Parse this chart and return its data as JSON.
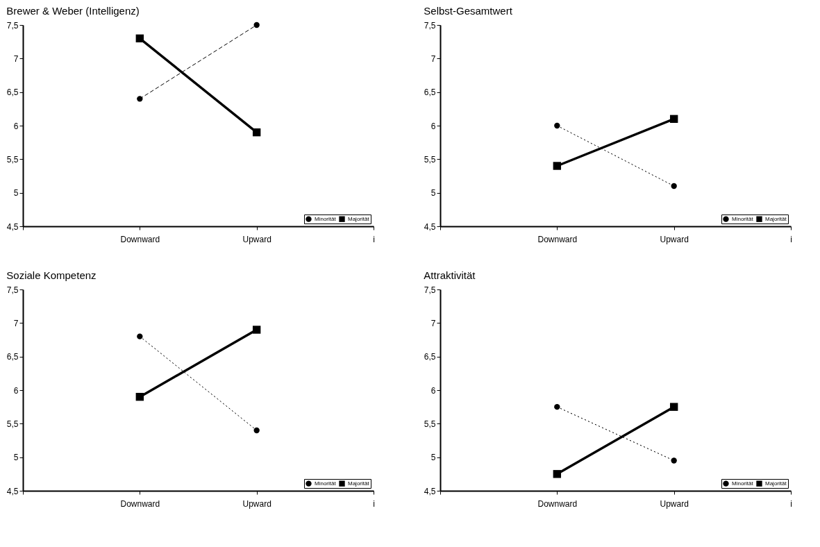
{
  "chart_data": [
    {
      "type": "line",
      "title": "Brewer & Weber (Intelligenz)",
      "categories": [
        null,
        "Downward",
        "Upward",
        "i"
      ],
      "ylim": [
        4.5,
        7.5
      ],
      "yticks": [
        {
          "value": 4.5,
          "label": "4,5"
        },
        5,
        {
          "value": 5.5,
          "label": "5,5"
        },
        6,
        {
          "value": 6.5,
          "label": "6,5"
        },
        7,
        {
          "value": 7.5,
          "label": "7,5"
        }
      ],
      "grid": false,
      "legend": "bottom right",
      "series": [
        {
          "name": "Minorität",
          "color": "#000000",
          "marker": "circle",
          "line_style": "dashed",
          "values": [
            null,
            6.4,
            7.5,
            null
          ]
        },
        {
          "name": "Majorität",
          "color": "#000000",
          "marker": "square",
          "line_style": "solid",
          "values": [
            null,
            7.3,
            5.9,
            null
          ]
        }
      ]
    },
    {
      "type": "line",
      "title": "Selbst-Gesamtwert",
      "categories": [
        null,
        "Downward",
        "Upward",
        "i"
      ],
      "ylim": [
        4.5,
        7.5
      ],
      "yticks": [
        {
          "value": 4.5,
          "label": "4,5"
        },
        5,
        {
          "value": 5.5,
          "label": "5,5"
        },
        6,
        {
          "value": 6.5,
          "label": "6,5"
        },
        7,
        {
          "value": 7.5,
          "label": "7,5"
        }
      ],
      "grid": false,
      "legend": "bottom right",
      "series": [
        {
          "name": "Minorität",
          "color": "#000000",
          "marker": "circle",
          "line_style": "dotted",
          "values": [
            null,
            6.0,
            5.1,
            null
          ]
        },
        {
          "name": "Majorität",
          "color": "#000000",
          "marker": "square",
          "line_style": "solid",
          "values": [
            null,
            5.4,
            6.1,
            null
          ]
        }
      ]
    },
    {
      "type": "line",
      "title": "Soziale Kompetenz",
      "categories": [
        null,
        "Downward",
        "Upward",
        "i"
      ],
      "ylim": [
        4.5,
        7.5
      ],
      "yticks": [
        {
          "value": 4.5,
          "label": "4,5"
        },
        5,
        {
          "value": 5.5,
          "label": "5,5"
        },
        6,
        {
          "value": 6.5,
          "label": "6,5"
        },
        7,
        {
          "value": 7.5,
          "label": "7,5"
        }
      ],
      "grid": false,
      "legend": "bottom right",
      "series": [
        {
          "name": "Minorität",
          "color": "#000000",
          "marker": "circle",
          "line_style": "dotted",
          "values": [
            null,
            6.8,
            5.4,
            null
          ]
        },
        {
          "name": "Majorität",
          "color": "#000000",
          "marker": "square",
          "line_style": "solid",
          "values": [
            null,
            5.9,
            6.9,
            null
          ]
        }
      ]
    },
    {
      "type": "line",
      "title": "Attraktivität",
      "categories": [
        null,
        "Downward",
        "Upward",
        "i"
      ],
      "ylim": [
        4.5,
        7.5
      ],
      "yticks": [
        {
          "value": 4.5,
          "label": "4,5"
        },
        5,
        {
          "value": 5.5,
          "label": "5,5"
        },
        6,
        {
          "value": 6.5,
          "label": "6,5"
        },
        7,
        {
          "value": 7.5,
          "label": "7,5"
        }
      ],
      "grid": false,
      "legend": "bottom right",
      "series": [
        {
          "name": "Minorität",
          "color": "#000000",
          "marker": "circle",
          "line_style": "dotted",
          "values": [
            null,
            5.75,
            4.95,
            null
          ]
        },
        {
          "name": "Majorität",
          "color": "#000000",
          "marker": "square",
          "line_style": "solid",
          "values": [
            null,
            4.75,
            5.75,
            null
          ]
        }
      ]
    }
  ]
}
